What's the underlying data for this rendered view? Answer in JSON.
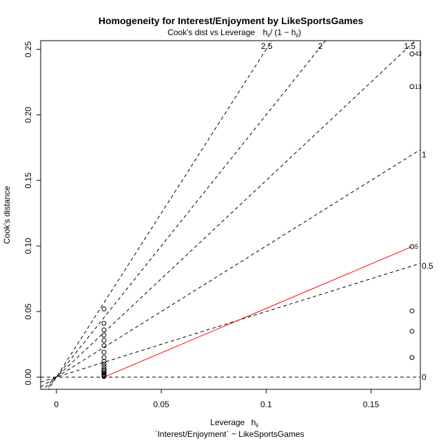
{
  "chart_data": {
    "type": "scatter",
    "title": "Homogeneity for Interest/Enjoyment by LikeSportsGames",
    "subtitle": "Cook's dist vs Leverage",
    "subtitle_formula_main": "h",
    "subtitle_formula_sub": "ii",
    "subtitle_formula_rest": "/ (1 − h",
    "subtitle_formula_sub2": "ii",
    "subtitle_formula_close": ")",
    "xlabel_main": "Leverage",
    "xlabel_h": "h",
    "xlabel_sub": "ii",
    "xlabel2": "`Interest/Enjoyment` ~ LikeSportsGames",
    "ylabel": "Cook's distance",
    "xlim": [
      -0.0075,
      0.1735
    ],
    "ylim": [
      -0.0093,
      0.2566
    ],
    "x_ticks": [
      0,
      0.05,
      0.1,
      0.15
    ],
    "x_tick_labels": [
      "0",
      "0.05",
      "0.1",
      "0.15"
    ],
    "y_ticks": [
      0,
      0.05,
      0.1,
      0.15,
      0.2,
      0.25
    ],
    "y_tick_labels": [
      "0.00",
      "0.05",
      "0.10",
      "0.15",
      "0.20",
      "0.25"
    ],
    "points": [
      {
        "x": 0.0227,
        "y": 0.052
      },
      {
        "x": 0.0227,
        "y": 0.041
      },
      {
        "x": 0.0227,
        "y": 0.036
      },
      {
        "x": 0.0227,
        "y": 0.032
      },
      {
        "x": 0.0227,
        "y": 0.028
      },
      {
        "x": 0.0227,
        "y": 0.024
      },
      {
        "x": 0.0227,
        "y": 0.019
      },
      {
        "x": 0.0227,
        "y": 0.015
      },
      {
        "x": 0.0227,
        "y": 0.012
      },
      {
        "x": 0.0227,
        "y": 0.01
      },
      {
        "x": 0.0227,
        "y": 0.008
      },
      {
        "x": 0.0227,
        "y": 0.006
      },
      {
        "x": 0.0227,
        "y": 0.005
      },
      {
        "x": 0.0227,
        "y": 0.004
      },
      {
        "x": 0.0227,
        "y": 0.003
      },
      {
        "x": 0.0227,
        "y": 0.002
      },
      {
        "x": 0.0227,
        "y": 0.0015
      },
      {
        "x": 0.0227,
        "y": 0.001
      },
      {
        "x": 0.0227,
        "y": 0.0005
      },
      {
        "x": 0.1695,
        "y": 0.2465,
        "label": "43"
      },
      {
        "x": 0.1695,
        "y": 0.2215,
        "label": "13"
      },
      {
        "x": 0.1695,
        "y": 0.0995,
        "label": "5"
      },
      {
        "x": 0.1695,
        "y": 0.0505
      },
      {
        "x": 0.1695,
        "y": 0.035
      },
      {
        "x": 0.1695,
        "y": 0.015
      }
    ],
    "contours": [
      {
        "label": "0",
        "slope": 0
      },
      {
        "label": "0.5",
        "slope": 0.5
      },
      {
        "label": "1",
        "slope": 1
      },
      {
        "label": "1.5",
        "slope": 1.5
      },
      {
        "label": "2",
        "slope": 2
      },
      {
        "label": "2.5",
        "slope": 2.5
      }
    ],
    "smooth_line": {
      "color": "#ff0000",
      "x": [
        0.0227,
        0.1695
      ],
      "y": [
        0.0,
        0.0995
      ]
    },
    "colors": {
      "points": "#000000",
      "contours": "#000000",
      "smooth": "#ff0000"
    }
  }
}
